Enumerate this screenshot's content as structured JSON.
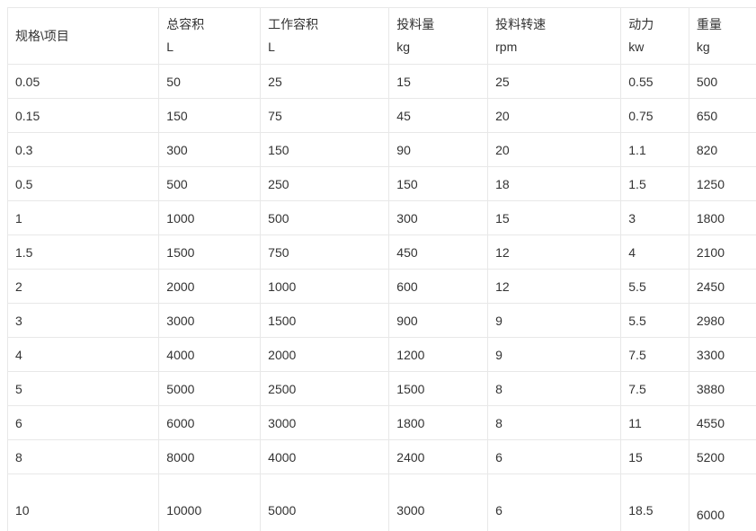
{
  "page": {
    "background_color": "#ffffff",
    "border_color": "#e8e8e8",
    "text_color": "#333333"
  },
  "chart_data": {
    "type": "table",
    "title": "",
    "columns": [
      {
        "label": "规格\\项目",
        "unit": ""
      },
      {
        "label": "总容积",
        "unit": "L"
      },
      {
        "label": "工作容积",
        "unit": "L"
      },
      {
        "label": "投料量",
        "unit": "kg"
      },
      {
        "label": "投料转速",
        "unit": "rpm"
      },
      {
        "label": "动力",
        "unit": "kw"
      },
      {
        "label": "重量",
        "unit": "kg"
      }
    ],
    "rows": [
      [
        "0.05",
        "50",
        "25",
        "15",
        "25",
        "0.55",
        "500"
      ],
      [
        "0.15",
        "150",
        "75",
        "45",
        "20",
        "0.75",
        "650"
      ],
      [
        "0.3",
        "300",
        "150",
        "90",
        "20",
        "1.1",
        "820"
      ],
      [
        "0.5",
        "500",
        "250",
        "150",
        "18",
        "1.5",
        "1250"
      ],
      [
        "1",
        "1000",
        "500",
        "300",
        "15",
        "3",
        "1800"
      ],
      [
        "1.5",
        "1500",
        "750",
        "450",
        "12",
        "4",
        "2100"
      ],
      [
        "2",
        "2000",
        "1000",
        "600",
        "12",
        "5.5",
        "2450"
      ],
      [
        "3",
        "3000",
        "1500",
        "900",
        "9",
        "5.5",
        "2980"
      ],
      [
        "4",
        "4000",
        "2000",
        "1200",
        "9",
        "7.5",
        "3300"
      ],
      [
        "5",
        "5000",
        "2500",
        "1500",
        "8",
        "7.5",
        "3880"
      ],
      [
        "6",
        "6000",
        "3000",
        "1800",
        "8",
        "11",
        "4550"
      ],
      [
        "8",
        "8000",
        "4000",
        "2400",
        "6",
        "15",
        "5200"
      ],
      [
        "10",
        "10000",
        "5000",
        "3000",
        "6",
        "18.5",
        "6000"
      ]
    ]
  }
}
